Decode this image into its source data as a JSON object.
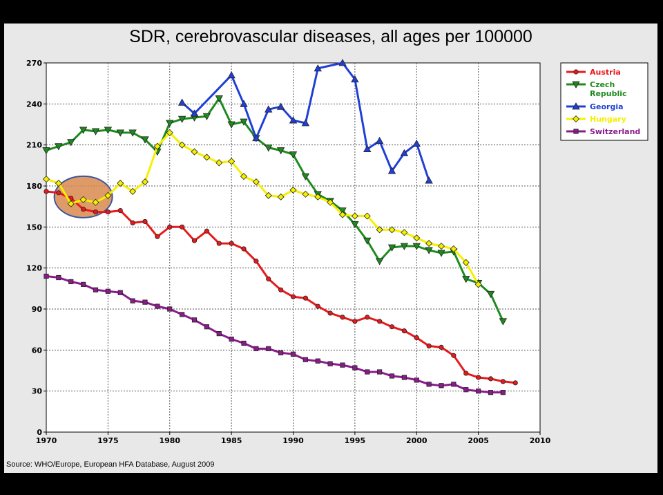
{
  "colors": {
    "Austria": "#e8191c",
    "Czech Republic": "#1e8a1e",
    "Georgia": "#1f3fd6",
    "Hungary": "#f5f000",
    "Switzerland": "#8a1c8a"
  },
  "chart_data": {
    "type": "line",
    "title": "SDR, cerebrovascular diseases, all ages per 100000",
    "xlabel": "",
    "ylabel": "",
    "xlim": [
      1970,
      2010
    ],
    "ylim": [
      0,
      270
    ],
    "xticks": [
      "1970",
      "1975",
      "1980",
      "1985",
      "1990",
      "1995",
      "2000",
      "2005",
      "2010"
    ],
    "yticks": [
      "0",
      "30",
      "60",
      "90",
      "120",
      "150",
      "180",
      "210",
      "240",
      "270"
    ],
    "grid": true,
    "legend_position": "right",
    "series": [
      {
        "name": "Austria",
        "marker": "circle",
        "x": [
          1970,
          1971,
          1972,
          1973,
          1974,
          1975,
          1976,
          1977,
          1978,
          1979,
          1980,
          1981,
          1982,
          1983,
          1984,
          1985,
          1986,
          1987,
          1988,
          1989,
          1990,
          1991,
          1992,
          1993,
          1994,
          1995,
          1996,
          1997,
          1998,
          1999,
          2000,
          2001,
          2002,
          2003,
          2004,
          2005,
          2006,
          2007,
          2008
        ],
        "y": [
          176,
          175,
          171,
          163,
          161,
          161,
          162,
          153,
          154,
          143,
          150,
          150,
          140,
          147,
          138,
          138,
          134,
          125,
          112,
          104,
          99,
          98,
          92,
          87,
          84,
          81,
          84,
          81,
          77,
          74,
          69,
          63,
          62,
          56,
          43,
          40,
          39,
          37,
          36
        ]
      },
      {
        "name": "Czech Republic",
        "marker": "triangle-down",
        "x": [
          1970,
          1971,
          1972,
          1973,
          1974,
          1975,
          1976,
          1977,
          1978,
          1979,
          1980,
          1981,
          1982,
          1983,
          1984,
          1985,
          1986,
          1987,
          1988,
          1989,
          1990,
          1991,
          1992,
          1993,
          1994,
          1995,
          1996,
          1997,
          1998,
          1999,
          2000,
          2001,
          2002,
          2003,
          2004,
          2005,
          2006,
          2007
        ],
        "y": [
          206,
          209,
          212,
          221,
          220,
          221,
          219,
          219,
          214,
          205,
          226,
          229,
          230,
          231,
          244,
          225,
          227,
          215,
          208,
          206,
          203,
          187,
          174,
          169,
          162,
          152,
          140,
          125,
          135,
          136,
          136,
          133,
          131,
          132,
          112,
          109,
          101,
          81
        ]
      },
      {
        "name": "Georgia",
        "marker": "triangle-up",
        "x": [
          1981,
          1982,
          1985,
          1986,
          1987,
          1988,
          1989,
          1990,
          1991,
          1992,
          1994,
          1995,
          1996,
          1997,
          1998,
          1999,
          2000,
          2001
        ],
        "y": [
          241,
          233,
          261,
          240,
          215,
          236,
          238,
          228,
          226,
          266,
          270,
          258,
          207,
          213,
          191,
          204,
          211,
          184
        ]
      },
      {
        "name": "Hungary",
        "marker": "diamond",
        "x": [
          1970,
          1971,
          1972,
          1973,
          1974,
          1975,
          1976,
          1977,
          1978,
          1979,
          1980,
          1981,
          1982,
          1983,
          1984,
          1985,
          1986,
          1987,
          1988,
          1989,
          1990,
          1991,
          1992,
          1993,
          1994,
          1995,
          1996,
          1997,
          1998,
          1999,
          2000,
          2001,
          2002,
          2003,
          2004,
          2005
        ],
        "y": [
          185,
          182,
          167,
          170,
          168,
          173,
          182,
          176,
          183,
          209,
          219,
          210,
          205,
          201,
          197,
          198,
          187,
          183,
          173,
          172,
          177,
          174,
          172,
          168,
          159,
          158,
          158,
          148,
          148,
          146,
          142,
          138,
          136,
          134,
          124,
          108
        ]
      },
      {
        "name": "Switzerland",
        "marker": "square",
        "x": [
          1970,
          1971,
          1972,
          1973,
          1974,
          1975,
          1976,
          1977,
          1978,
          1979,
          1980,
          1981,
          1982,
          1983,
          1984,
          1985,
          1986,
          1987,
          1988,
          1989,
          1990,
          1991,
          1992,
          1993,
          1994,
          1995,
          1996,
          1997,
          1998,
          1999,
          2000,
          2001,
          2002,
          2003,
          2004,
          2005,
          2006,
          2007
        ],
        "y": [
          114,
          113,
          110,
          108,
          104,
          103,
          102,
          96,
          95,
          92,
          90,
          86,
          82,
          77,
          72,
          68,
          65,
          61,
          61,
          58,
          57,
          53,
          52,
          50,
          49,
          47,
          44,
          44,
          41,
          40,
          38,
          35,
          34,
          35,
          31,
          30,
          29,
          29
        ]
      }
    ],
    "annotation": {
      "type": "ellipse",
      "center_x": 1973,
      "center_y": 172,
      "fill": "#d9894c",
      "stroke": "#3a55a0"
    },
    "source": "Source: WHO/Europe, European HFA Database, August 2009"
  }
}
